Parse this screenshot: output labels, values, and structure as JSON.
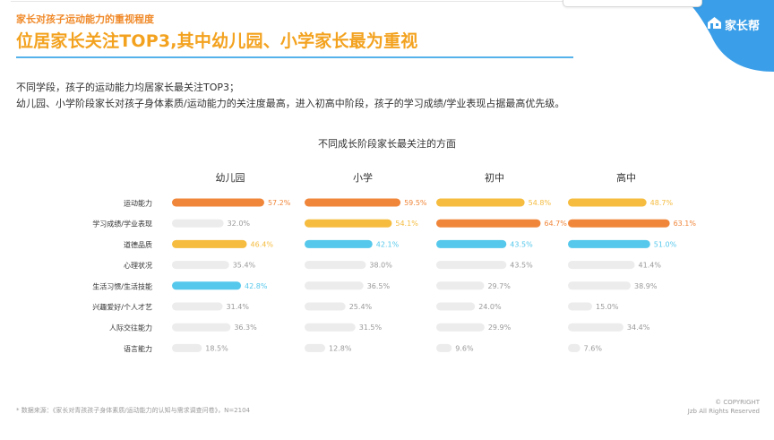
{
  "header": {
    "subtitle": "家长对孩子运动能力的重视程度",
    "title": "位居家长关注TOP3,其中幼儿园、小学家长最为重视",
    "logo_text": "家长帮",
    "logo_icon": "house-icon"
  },
  "description": {
    "line1": "不同学段，孩子的运动能力均居家长最关注TOP3；",
    "line2": "幼儿园、小学阶段家长对孩子身体素质/运动能力的关注度最高，进入初高中阶段，孩子的学习成绩/学业表现占据最高优先级。"
  },
  "footer": {
    "source": "* 数据来源：《家长对青孩孩子身体素质/运动能力的认知与需求调查问卷》，N=2104",
    "copyright_line1": "© COPYRIGHT",
    "copyright_line2": "Jzb All Rights Reserved"
  },
  "colors": {
    "accent_orange": "#f0863a",
    "accent_yellow": "#f5bc3f",
    "accent_blue": "#56c8ec",
    "bar_gray": "#ececec",
    "rule_blue": "#56b2ea",
    "logo_blue": "#3a9ee8"
  },
  "chart_data": {
    "type": "bar",
    "orientation": "horizontal",
    "title": "不同成长阶段家长最关注的方面",
    "categories": [
      "运动能力",
      "学习成绩/学业表现",
      "道德品质",
      "心理状况",
      "生活习惯/生活技能",
      "兴趣爱好/个人才艺",
      "人际交往能力",
      "语言能力"
    ],
    "xlim": [
      0,
      100
    ],
    "unit": "%",
    "series": [
      {
        "name": "幼儿园",
        "values": [
          57.2,
          32.0,
          46.4,
          35.4,
          42.8,
          31.4,
          36.3,
          18.5
        ],
        "labels": [
          "57.2%",
          "32.0%",
          "46.4%",
          "35.4%",
          "42.8%",
          "31.4%",
          "36.3%",
          "18.5%"
        ],
        "highlight": [
          "orange",
          "gray",
          "yellow",
          "gray",
          "blue",
          "gray",
          "gray",
          "gray"
        ]
      },
      {
        "name": "小学",
        "values": [
          59.5,
          54.1,
          42.1,
          38.0,
          36.5,
          25.4,
          31.5,
          12.8
        ],
        "labels": [
          "59.5%",
          "54.1%",
          "42.1%",
          "38.0%",
          "36.5%",
          "25.4%",
          "31.5%",
          "12.8%"
        ],
        "highlight": [
          "orange",
          "yellow",
          "blue",
          "gray",
          "gray",
          "gray",
          "gray",
          "gray"
        ]
      },
      {
        "name": "初中",
        "values": [
          54.8,
          64.7,
          43.5,
          43.5,
          29.7,
          24.0,
          29.9,
          9.6
        ],
        "labels": [
          "54.8%",
          "64.7%",
          "43.5%",
          "43.5%",
          "29.7%",
          "24.0%",
          "29.9%",
          "9.6%"
        ],
        "highlight": [
          "yellow",
          "orange",
          "blue",
          "gray",
          "gray",
          "gray",
          "gray",
          "gray"
        ]
      },
      {
        "name": "高中",
        "values": [
          48.7,
          63.1,
          51.0,
          41.4,
          38.9,
          15.0,
          34.4,
          7.6
        ],
        "labels": [
          "48.7%",
          "63.1%",
          "51.0%",
          "41.4%",
          "38.9%",
          "15.0%",
          "34.4%",
          "7.6%"
        ],
        "highlight": [
          "yellow",
          "orange",
          "blue",
          "gray",
          "gray",
          "gray",
          "gray",
          "gray"
        ]
      }
    ]
  }
}
